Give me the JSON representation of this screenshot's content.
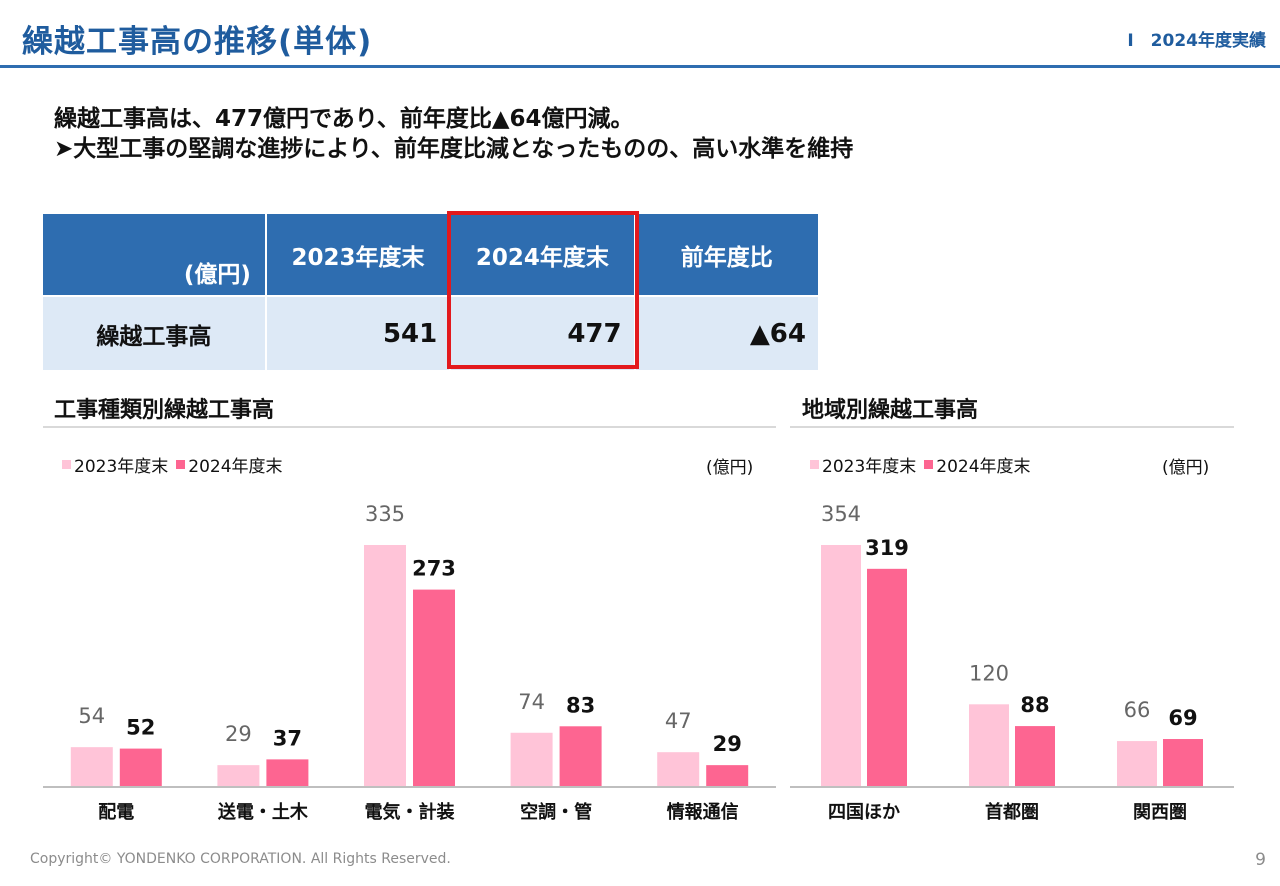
{
  "header": {
    "title": "繰越工事高の推移(単体)",
    "section": "Ⅰ　2024年度実績"
  },
  "summary": {
    "line1": "繰越工事高は、477億円であり、前年度比▲64億円減。",
    "line2": "➤大型工事の堅調な進捗により、前年度比減となったものの、高い水準を維持"
  },
  "table": {
    "unit": "(億円)",
    "headers": [
      "2023年度末",
      "2024年度末",
      "前年度比"
    ],
    "row_label": "繰越工事高",
    "values": [
      "541",
      "477",
      "▲64"
    ]
  },
  "colors": {
    "brand": "#1f5c9e",
    "header_bg": "#2e6db0",
    "row_bg": "#dde9f6",
    "highlight": "#e3191d",
    "series_2023": "#ffc4d8",
    "series_2024": "#fd6591"
  },
  "chart_data": [
    {
      "type": "bar",
      "title": "工事種類別繰越工事高",
      "unit": "(億円)",
      "categories": [
        "配電",
        "送電・土木",
        "電気・計装",
        "空調・管",
        "情報通信"
      ],
      "series": [
        {
          "name": "2023年度末",
          "values": [
            54,
            29,
            335,
            74,
            47
          ]
        },
        {
          "name": "2024年度末",
          "values": [
            52,
            37,
            273,
            83,
            29
          ]
        }
      ],
      "ylim": [
        0,
        335
      ],
      "grid": false,
      "legend": "top-left"
    },
    {
      "type": "bar",
      "title": "地域別繰越工事高",
      "unit": "(億円)",
      "categories": [
        "四国ほか",
        "首都圏",
        "関西圏"
      ],
      "series": [
        {
          "name": "2023年度末",
          "values": [
            354,
            120,
            66
          ]
        },
        {
          "name": "2024年度末",
          "values": [
            319,
            88,
            69
          ]
        }
      ],
      "ylim": [
        0,
        354
      ],
      "grid": false,
      "legend": "top-left"
    }
  ],
  "footer": {
    "copyright": "Copyright© YONDENKO CORPORATION. All Rights Reserved.",
    "page": "9"
  }
}
